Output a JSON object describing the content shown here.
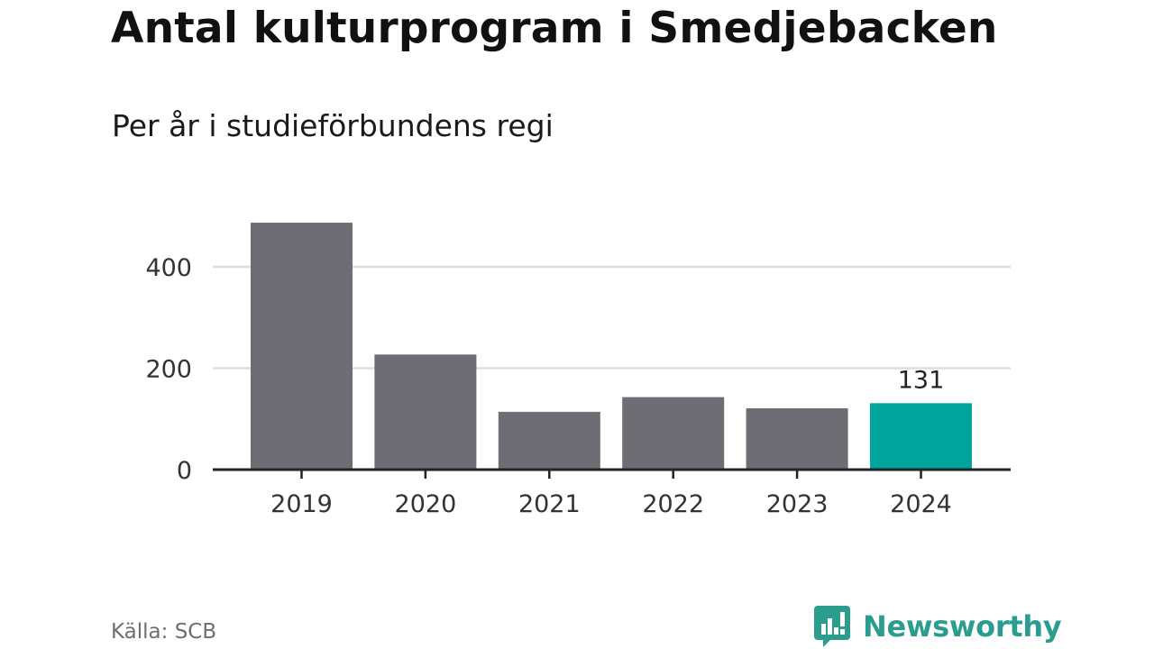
{
  "header": {
    "title": "Antal kulturprogram i Smedjebacken",
    "subtitle": "Per år i studieförbundens regi"
  },
  "footer": {
    "source": "Källa: SCB",
    "brand": "Newsworthy",
    "brand_color": "#2a9d8f"
  },
  "chart_data": {
    "type": "bar",
    "title": "Antal kulturprogram i Smedjebacken",
    "subtitle": "Per år i studieförbundens regi",
    "xlabel": "",
    "ylabel": "",
    "categories": [
      "2019",
      "2020",
      "2021",
      "2022",
      "2023",
      "2024"
    ],
    "values": [
      487,
      227,
      114,
      143,
      121,
      131
    ],
    "ylim": [
      0,
      500
    ],
    "yticks": [
      0,
      200,
      400
    ],
    "grid": true,
    "highlight_index": 5,
    "data_labels": [
      {
        "index": 5,
        "text": "131"
      }
    ],
    "colors": {
      "bar": "#6e6d73",
      "highlight": "#00a49a",
      "grid": "#dddddd",
      "axis": "#222222"
    }
  }
}
